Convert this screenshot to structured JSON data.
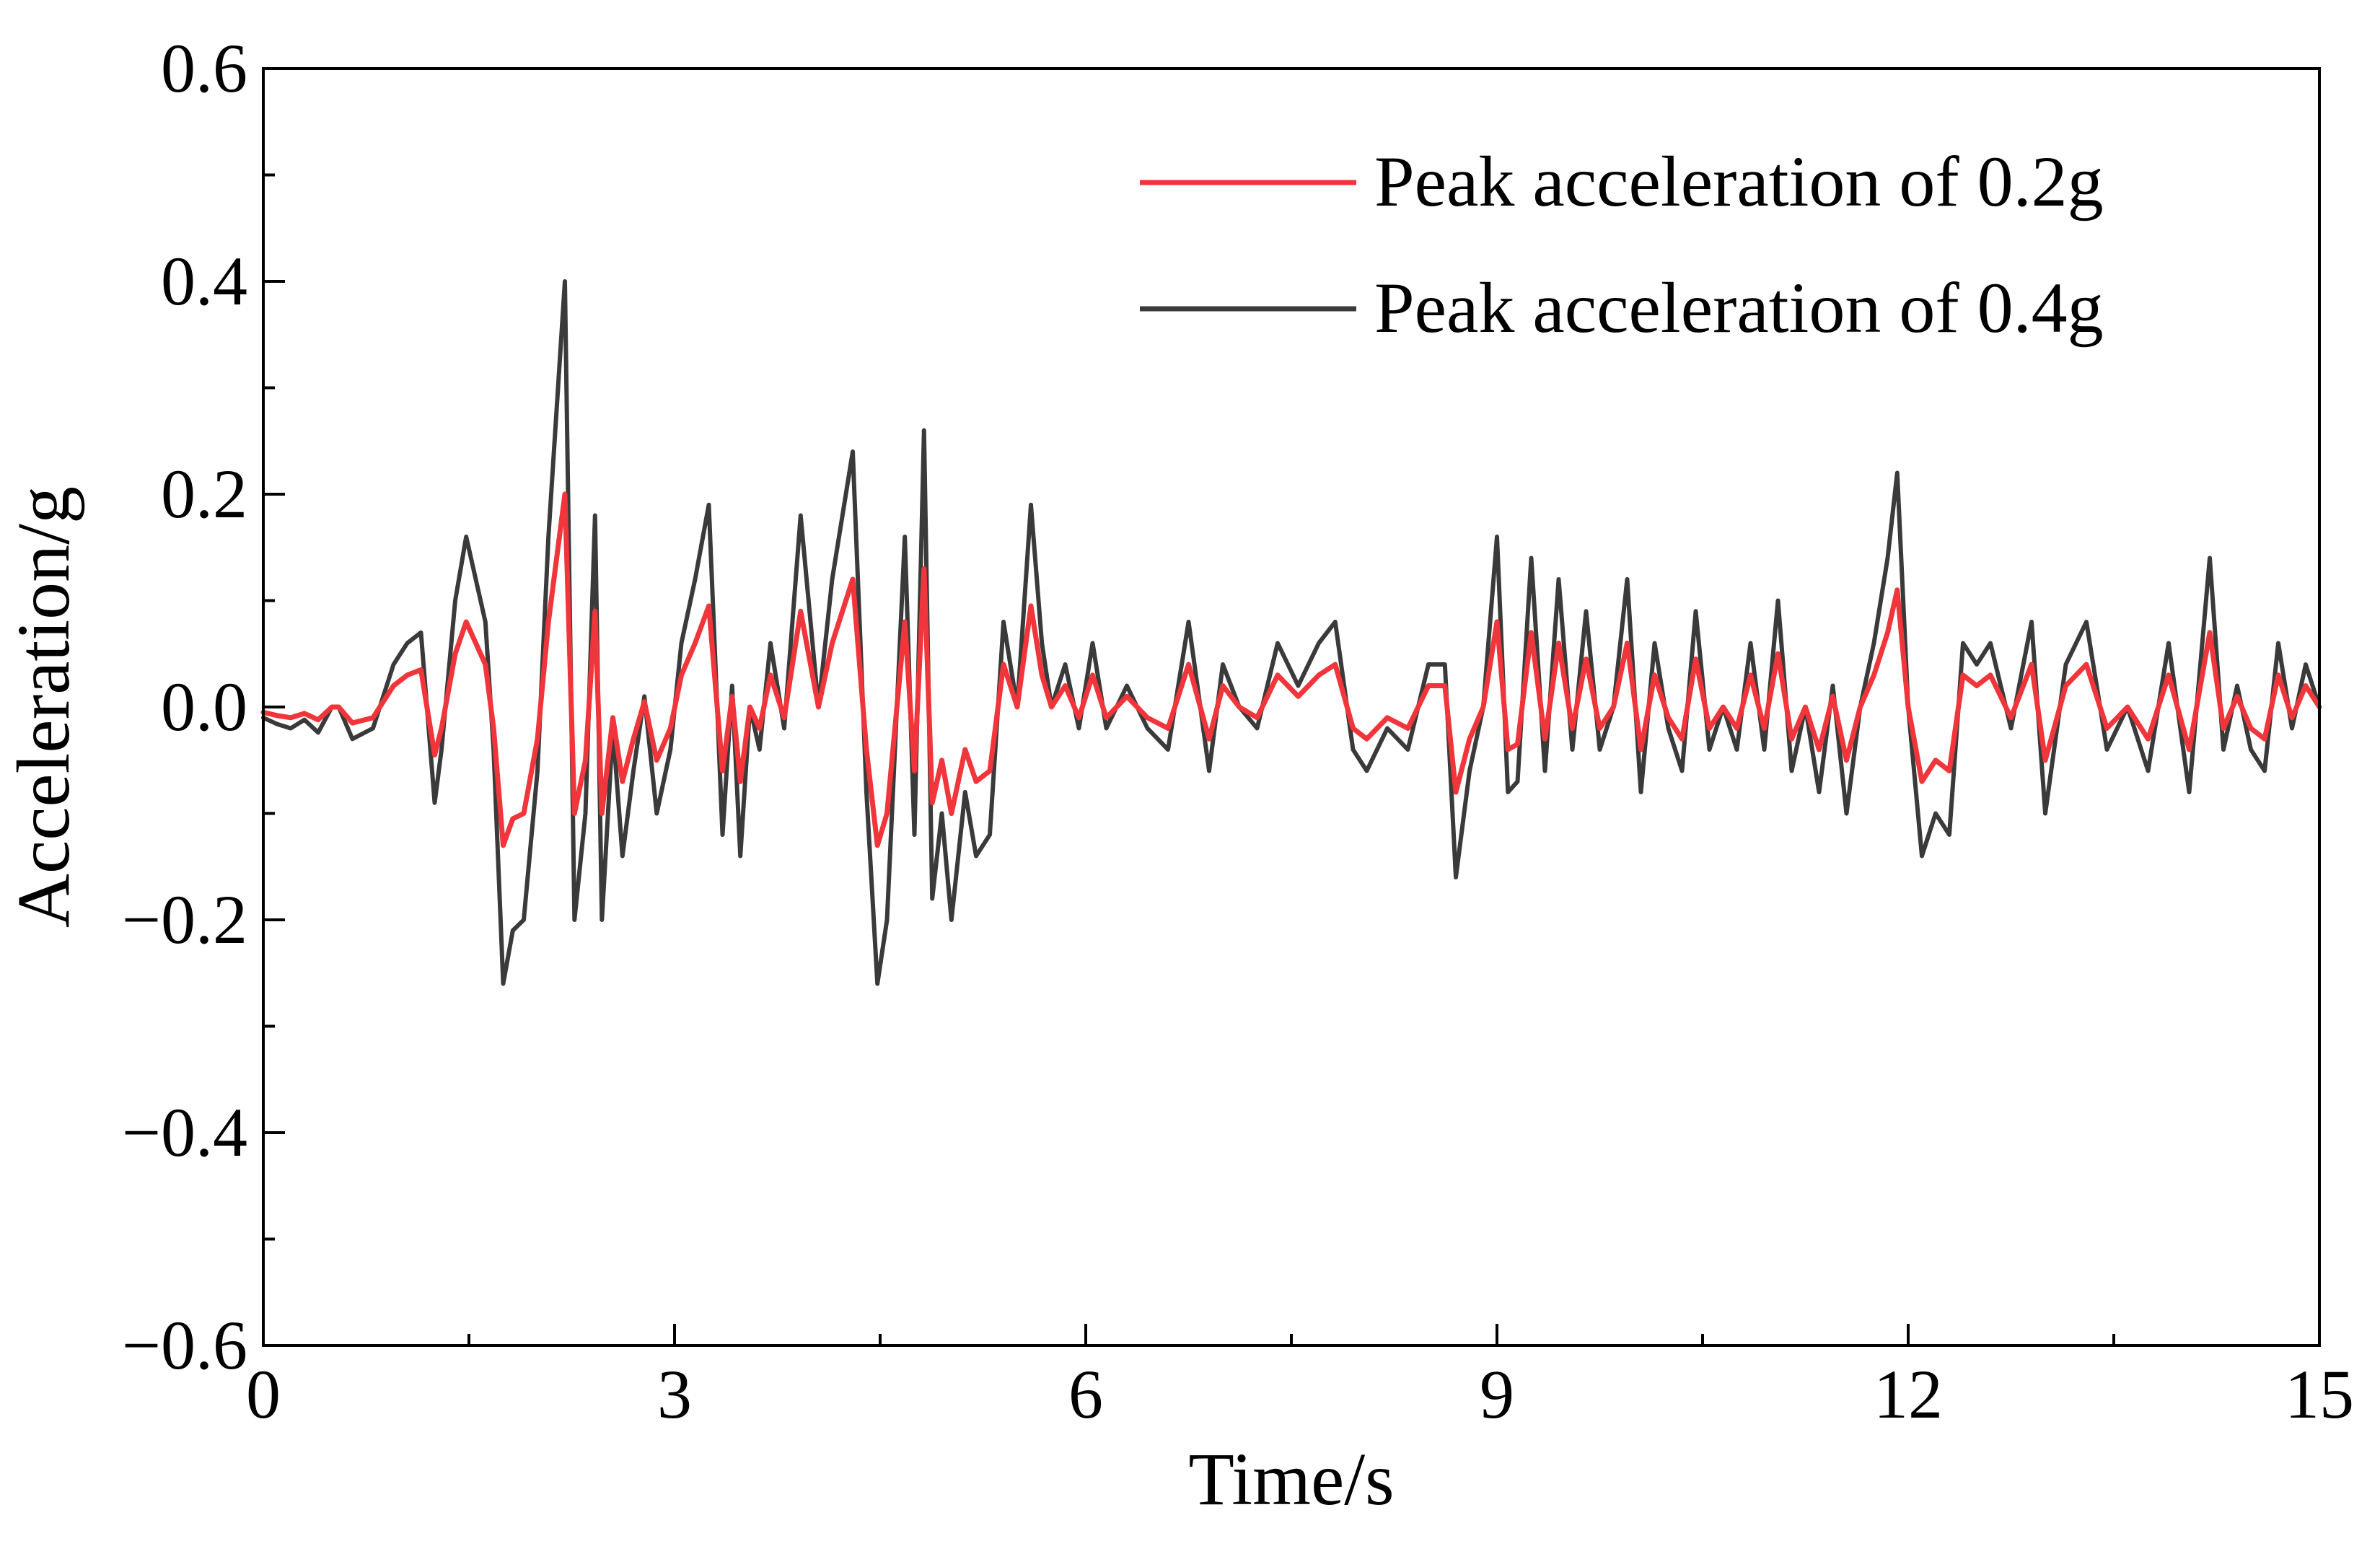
{
  "chart_data": {
    "type": "line",
    "title": "",
    "xlabel": "Time/s",
    "ylabel": "Acceleration/g",
    "xlim": [
      0,
      15
    ],
    "ylim": [
      -0.6,
      0.6
    ],
    "x_ticks": [
      0,
      3,
      6,
      9,
      12,
      15
    ],
    "x_tick_labels": [
      "0",
      "3",
      "6",
      "9",
      "12",
      "15"
    ],
    "y_ticks": [
      -0.6,
      -0.4,
      -0.2,
      0.0,
      0.2,
      0.4,
      0.6
    ],
    "y_tick_labels": [
      "−0.6",
      "−0.4",
      "−0.2",
      "0.0",
      "0.2",
      "0.4",
      "0.6"
    ],
    "grid": false,
    "legend_position": "top-right",
    "series": [
      {
        "name": "Peak acceleration of 0.2g",
        "color": "#f0353b",
        "x": [
          0,
          0.1,
          0.2,
          0.3,
          0.4,
          0.5,
          0.55,
          0.65,
          0.8,
          0.95,
          1.05,
          1.15,
          1.25,
          1.3,
          1.4,
          1.48,
          1.55,
          1.62,
          1.68,
          1.75,
          1.82,
          1.9,
          2.0,
          2.08,
          2.15,
          2.2,
          2.27,
          2.35,
          2.42,
          2.47,
          2.55,
          2.62,
          2.7,
          2.78,
          2.87,
          2.97,
          3.05,
          3.15,
          3.25,
          3.35,
          3.42,
          3.48,
          3.55,
          3.62,
          3.7,
          3.8,
          3.92,
          4.05,
          4.15,
          4.3,
          4.4,
          4.48,
          4.55,
          4.68,
          4.75,
          4.82,
          4.88,
          4.95,
          5.02,
          5.12,
          5.2,
          5.3,
          5.4,
          5.5,
          5.6,
          5.68,
          5.75,
          5.85,
          5.95,
          6.05,
          6.15,
          6.3,
          6.45,
          6.6,
          6.75,
          6.9,
          7.0,
          7.12,
          7.25,
          7.4,
          7.55,
          7.7,
          7.82,
          7.95,
          8.05,
          8.2,
          8.35,
          8.5,
          8.62,
          8.7,
          8.8,
          8.9,
          9.0,
          9.08,
          9.15,
          9.25,
          9.35,
          9.45,
          9.55,
          9.65,
          9.75,
          9.85,
          9.95,
          10.05,
          10.15,
          10.25,
          10.35,
          10.45,
          10.55,
          10.65,
          10.75,
          10.85,
          10.95,
          11.05,
          11.15,
          11.25,
          11.35,
          11.45,
          11.55,
          11.65,
          11.75,
          11.85,
          11.92,
          12.0,
          12.1,
          12.2,
          12.3,
          12.4,
          12.5,
          12.6,
          12.75,
          12.9,
          13.0,
          13.15,
          13.3,
          13.45,
          13.6,
          13.75,
          13.9,
          14.05,
          14.2,
          14.3,
          14.4,
          14.5,
          14.6,
          14.7,
          14.8,
          14.9,
          15.0
        ],
        "y": [
          -0.005,
          -0.008,
          -0.01,
          -0.006,
          -0.012,
          0.0,
          0.0,
          -0.015,
          -0.01,
          0.02,
          0.03,
          0.035,
          -0.045,
          -0.02,
          0.05,
          0.08,
          0.06,
          0.04,
          -0.02,
          -0.13,
          -0.105,
          -0.1,
          -0.03,
          0.08,
          0.15,
          0.2,
          -0.1,
          -0.05,
          0.09,
          -0.1,
          -0.01,
          -0.07,
          -0.03,
          0.005,
          -0.05,
          -0.02,
          0.03,
          0.06,
          0.095,
          -0.06,
          0.01,
          -0.07,
          0.0,
          -0.02,
          0.03,
          -0.01,
          0.09,
          0.0,
          0.06,
          0.12,
          -0.04,
          -0.13,
          -0.1,
          0.08,
          -0.06,
          0.13,
          -0.09,
          -0.05,
          -0.1,
          -0.04,
          -0.07,
          -0.06,
          0.04,
          0.0,
          0.095,
          0.03,
          0.0,
          0.02,
          -0.01,
          0.03,
          -0.01,
          0.01,
          -0.01,
          -0.02,
          0.04,
          -0.03,
          0.02,
          0.0,
          -0.01,
          0.03,
          0.01,
          0.03,
          0.04,
          -0.02,
          -0.03,
          -0.01,
          -0.02,
          0.02,
          0.02,
          -0.08,
          -0.03,
          0.0,
          0.08,
          -0.04,
          -0.035,
          0.07,
          -0.03,
          0.06,
          -0.02,
          0.045,
          -0.02,
          0.0,
          0.06,
          -0.04,
          0.03,
          -0.01,
          -0.03,
          0.045,
          -0.02,
          0.0,
          -0.02,
          0.03,
          -0.02,
          0.05,
          -0.03,
          0.0,
          -0.04,
          0.01,
          -0.05,
          0.0,
          0.03,
          0.07,
          0.11,
          0.0,
          -0.07,
          -0.05,
          -0.06,
          0.03,
          0.02,
          0.03,
          -0.01,
          0.04,
          -0.05,
          0.02,
          0.04,
          -0.02,
          0.0,
          -0.03,
          0.03,
          -0.04,
          0.07,
          -0.02,
          0.01,
          -0.02,
          -0.03,
          0.03,
          -0.01,
          0.02,
          0.0
        ],
        "amplitude_scale": 1
      },
      {
        "name": "Peak acceleration of 0.4g",
        "color": "#3a3a3a",
        "source_series": 0,
        "amplitude_scale": 2
      }
    ]
  }
}
